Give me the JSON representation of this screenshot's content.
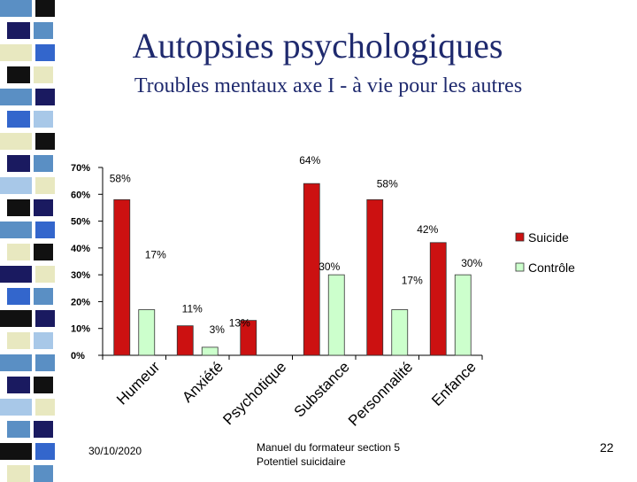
{
  "slide": {
    "title": "Autopsies psychologiques",
    "subtitle": "Troubles mentaux axe I - à vie pour les autres",
    "date": "30/10/2020",
    "footer_line1": "Manuel du formateur section 5",
    "footer_line2": "Potentiel suicidaire",
    "page_number": "22"
  },
  "colors": {
    "suicide": "#cc1111",
    "controle": "#ccffcc",
    "title": "#1f2a6e"
  },
  "chart_data": {
    "type": "bar",
    "categories": [
      "Humeur",
      "Anxiété",
      "Psychotique",
      "Substance",
      "Personnalité",
      "Enfance"
    ],
    "series": [
      {
        "name": "Suicide",
        "values": [
          58,
          11,
          13,
          64,
          58,
          42
        ],
        "labels": [
          "58%",
          "11%",
          "13%",
          "64%",
          "58%",
          "42%"
        ]
      },
      {
        "name": "Contrôle",
        "values": [
          17,
          3,
          null,
          30,
          17,
          30
        ],
        "labels": [
          "17%",
          "3%",
          "",
          "30%",
          "17%",
          "30%"
        ]
      }
    ],
    "ylim": [
      0,
      70
    ],
    "yticks": [
      0,
      10,
      20,
      30,
      40,
      50,
      60,
      70
    ],
    "ytick_labels": [
      "0%",
      "10%",
      "20%",
      "30%",
      "40%",
      "50%",
      "60%",
      "70%"
    ],
    "legend_position": "right",
    "grid": false,
    "xlabel": "",
    "ylabel": ""
  }
}
